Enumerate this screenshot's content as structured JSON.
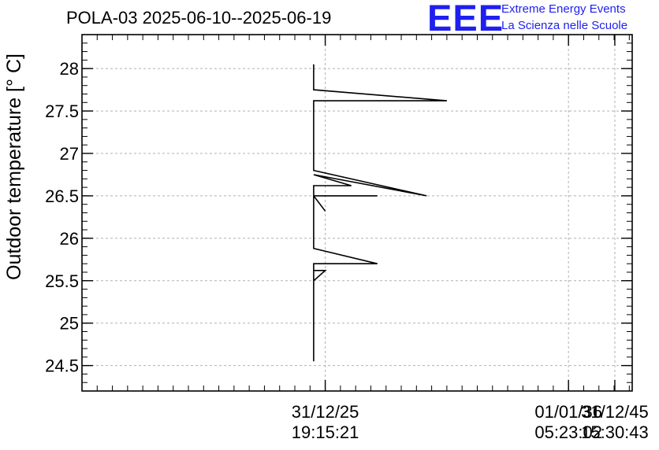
{
  "header": {
    "title": "POLA-03 2025-06-10--2025-06-19",
    "logo_text": "EEE",
    "logo_line1": "Extreme Energy Events",
    "logo_line2": "La Scienza nelle Scuole"
  },
  "colors": {
    "logo": "#1f1ff0",
    "axes": "#000000",
    "grid": "#b0b0b0",
    "series": "#000000"
  },
  "chart_data": {
    "type": "line",
    "title": "POLA-03 2025-06-10--2025-06-19",
    "xlabel": "",
    "ylabel": "Outdoor temperature [° C]",
    "ylim": [
      24.2,
      28.4
    ],
    "xlim": [
      -0.84,
      1.06
    ],
    "yticks": [
      24.5,
      25,
      25.5,
      26,
      26.5,
      27,
      27.5,
      28
    ],
    "ytick_labels": [
      "24.5",
      "25",
      "25.5",
      "26",
      "26.5",
      "27",
      "27.5",
      "28"
    ],
    "xticks": [
      0,
      0.84,
      1.0
    ],
    "xtick_labels": [
      [
        "31/12/25",
        "19:15:21"
      ],
      [
        "01/01/36",
        "05:23:02"
      ],
      [
        "31/12/45",
        "15:30:43"
      ]
    ],
    "grid": true,
    "series": [
      {
        "name": "Outdoor temperature",
        "x": [
          -0.04,
          -0.04,
          0.42,
          -0.04,
          -0.04,
          0.35,
          -0.04,
          0.09,
          -0.04,
          -0.04,
          -0.04,
          0.18,
          -0.04,
          -0.04,
          -0.04,
          -0.04,
          -0.04,
          0.0,
          -0.04,
          -0.04,
          0.18,
          -0.04,
          -0.04,
          -0.04,
          0.0,
          -0.04,
          -0.04,
          -0.04
        ],
        "y": [
          28.05,
          27.75,
          27.62,
          27.62,
          26.8,
          26.5,
          26.75,
          26.62,
          26.62,
          26.5,
          26.5,
          26.5,
          26.5,
          26.38,
          26.5,
          26.5,
          26.5,
          26.32,
          26.5,
          25.88,
          25.7,
          25.7,
          25.62,
          25.62,
          25.62,
          25.5,
          25.62,
          24.55
        ]
      }
    ]
  }
}
